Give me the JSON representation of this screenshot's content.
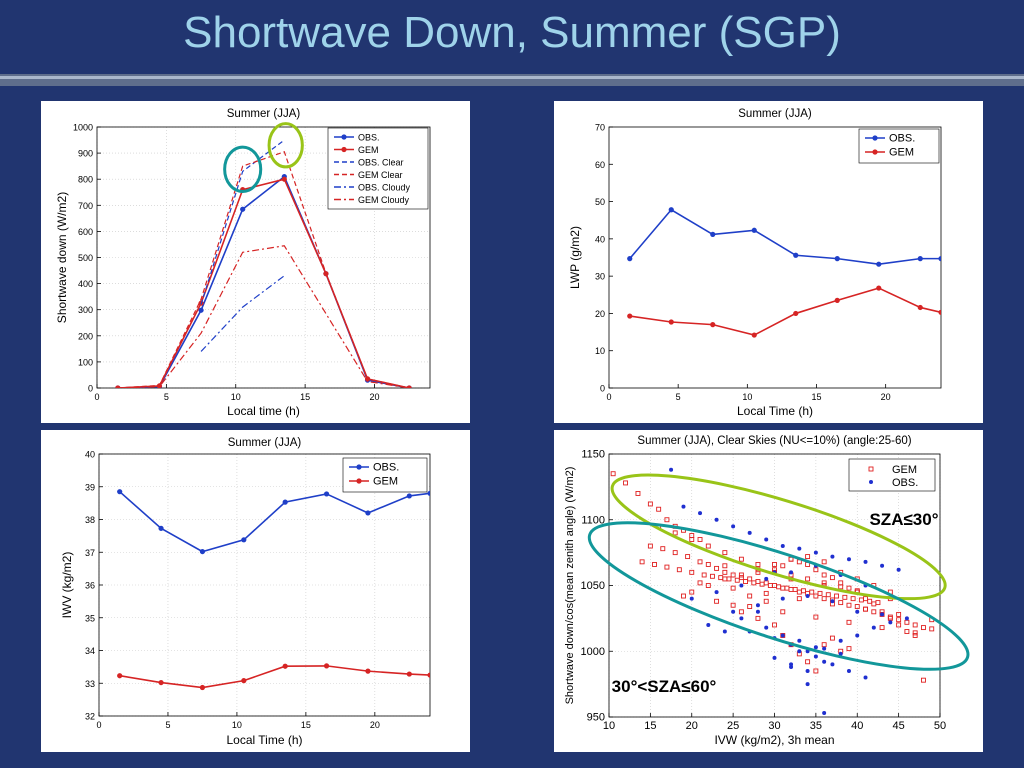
{
  "slide": {
    "title": "Shortwave Down, Summer (SGP)"
  },
  "chart_data": [
    {
      "type": "line",
      "title": "Summer (JJA)",
      "xlabel": "Local time (h)",
      "ylabel": "Shortwave down (W/m2)",
      "xlim": [
        0,
        24
      ],
      "ylim": [
        0,
        1000
      ],
      "xticks": [
        0,
        5,
        10,
        15,
        20
      ],
      "yticks": [
        0,
        100,
        200,
        300,
        400,
        500,
        600,
        700,
        800,
        900,
        1000
      ],
      "grid": true,
      "legend": "top-right",
      "series": [
        {
          "name": "OBS.",
          "color": "#1f3fc8",
          "dash": "solid",
          "markers": true,
          "x": [
            1.5,
            4.5,
            7.5,
            10.5,
            13.5,
            16.5,
            19.5,
            22.5
          ],
          "y": [
            0,
            5,
            298,
            685,
            810,
            438,
            30,
            0
          ]
        },
        {
          "name": "GEM",
          "color": "#d62424",
          "dash": "solid",
          "markers": true,
          "x": [
            1.5,
            4.5,
            7.5,
            10.5,
            13.5,
            16.5,
            19.5,
            22.5
          ],
          "y": [
            0,
            8,
            325,
            760,
            800,
            438,
            35,
            0
          ]
        },
        {
          "name": "OBS. Clear",
          "color": "#1f3fc8",
          "dash": "dash",
          "markers": false,
          "x": [
            7.5,
            10.5,
            13.5
          ],
          "y": [
            320,
            830,
            950
          ]
        },
        {
          "name": "GEM Clear",
          "color": "#d62424",
          "dash": "dash",
          "markers": false,
          "x": [
            1.5,
            4.5,
            7.5,
            10.5,
            13.5,
            16.5,
            19.5,
            22.5
          ],
          "y": [
            0,
            10,
            340,
            850,
            905,
            440,
            35,
            0
          ]
        },
        {
          "name": "OBS. Cloudy",
          "color": "#1f3fc8",
          "dash": "dashdot",
          "markers": false,
          "x": [
            7.5,
            10.5,
            13.5
          ],
          "y": [
            140,
            310,
            430
          ]
        },
        {
          "name": "GEM Cloudy",
          "color": "#d62424",
          "dash": "dashdot",
          "markers": false,
          "x": [
            1.5,
            4.5,
            7.5,
            10.5,
            13.5,
            16.5,
            19.5,
            22.5
          ],
          "y": [
            0,
            5,
            210,
            520,
            545,
            285,
            25,
            0
          ]
        }
      ],
      "highlights": [
        {
          "type": "ellipse",
          "color": "#12979a",
          "cx": 10.5,
          "cy": 838,
          "rx": 1.3,
          "ry": 85
        },
        {
          "type": "ellipse",
          "color": "#99c418",
          "cx": 13.6,
          "cy": 930,
          "rx": 1.2,
          "ry": 83
        }
      ]
    },
    {
      "type": "line",
      "title": "Summer (JJA)",
      "xlabel": "Local Time (h)",
      "ylabel": "LWP (g/m2)",
      "xlim": [
        0,
        24
      ],
      "ylim": [
        0,
        70
      ],
      "xticks": [
        0,
        5,
        10,
        15,
        20
      ],
      "yticks": [
        0,
        10,
        20,
        30,
        40,
        50,
        60,
        70
      ],
      "grid": false,
      "legend": "top-right",
      "series": [
        {
          "name": "OBS.",
          "color": "#1f3fc8",
          "dash": "solid",
          "markers": true,
          "x": [
            1.5,
            4.5,
            7.5,
            10.5,
            13.5,
            16.5,
            19.5,
            22.5,
            24
          ],
          "y": [
            34.7,
            47.8,
            41.2,
            42.3,
            35.6,
            34.7,
            33.2,
            34.7,
            34.7
          ]
        },
        {
          "name": "GEM",
          "color": "#d62424",
          "dash": "solid",
          "markers": true,
          "x": [
            1.5,
            4.5,
            7.5,
            10.5,
            13.5,
            16.5,
            19.5,
            22.5,
            24
          ],
          "y": [
            19.3,
            17.7,
            17.0,
            14.2,
            20.0,
            23.5,
            26.8,
            21.6,
            20.3
          ]
        }
      ]
    },
    {
      "type": "line",
      "title": "Summer (JJA)",
      "xlabel": "Local Time (h)",
      "ylabel": "IWV (kg/m2)",
      "xlim": [
        0,
        24
      ],
      "ylim": [
        32,
        40
      ],
      "xticks": [
        0,
        5,
        10,
        15,
        20
      ],
      "yticks": [
        32,
        33,
        34,
        35,
        36,
        37,
        38,
        39,
        40
      ],
      "grid": true,
      "legend": "top-right",
      "series": [
        {
          "name": "OBS.",
          "color": "#1f3fc8",
          "dash": "solid",
          "markers": true,
          "x": [
            1.5,
            4.5,
            7.5,
            10.5,
            13.5,
            16.5,
            19.5,
            22.5,
            24
          ],
          "y": [
            38.85,
            37.73,
            37.02,
            37.38,
            38.53,
            38.78,
            38.2,
            38.72,
            38.8
          ]
        },
        {
          "name": "GEM",
          "color": "#d62424",
          "dash": "solid",
          "markers": true,
          "x": [
            1.5,
            4.5,
            7.5,
            10.5,
            13.5,
            16.5,
            19.5,
            22.5,
            24
          ],
          "y": [
            33.23,
            33.02,
            32.87,
            33.08,
            33.52,
            33.53,
            33.37,
            33.28,
            33.25
          ]
        }
      ]
    },
    {
      "type": "scatter",
      "title": "Summer (JJA), Clear Skies (NU<=10%) (angle:25-60)",
      "xlabel": "IVW (kg/m2), 3h mean",
      "ylabel": "Shortwave down/cos(mean zenith angle) (W/m2)",
      "xlim": [
        10,
        50
      ],
      "ylim": [
        950,
        1150
      ],
      "xticks": [
        10,
        15,
        20,
        25,
        30,
        35,
        40,
        45,
        50
      ],
      "yticks": [
        950,
        1000,
        1050,
        1100,
        1150
      ],
      "grid": true,
      "legend": "top-right",
      "series": [
        {
          "name": "GEM",
          "color": "#e02020",
          "marker": "open-square",
          "x": [
            10.5,
            12,
            13.5,
            15,
            16,
            17,
            18,
            19,
            20,
            21,
            15,
            16.5,
            18,
            19.5,
            21,
            22,
            23,
            24,
            25,
            26,
            27,
            28,
            29,
            30,
            31,
            32,
            33,
            34,
            35,
            36,
            37,
            38,
            39,
            40,
            41,
            42,
            43,
            44,
            45,
            46,
            47,
            14,
            15.5,
            17,
            18.5,
            20,
            21.5,
            22.5,
            23.5,
            24.5,
            25.5,
            26.5,
            27.5,
            28.5,
            29.5,
            30.5,
            31.5,
            32.5,
            33.5,
            34.5,
            35.5,
            36.5,
            37.5,
            38.5,
            39.5,
            40.5,
            41.5,
            42.5,
            16,
            18,
            20,
            22,
            24,
            26,
            28,
            30,
            32,
            34,
            36,
            38,
            40,
            25,
            26,
            27,
            28,
            29,
            30,
            31,
            32,
            33,
            34,
            35,
            36,
            37,
            38,
            39,
            30,
            31,
            32,
            33,
            34,
            35,
            36,
            37,
            38,
            39,
            40,
            41,
            42,
            43,
            44,
            45,
            46,
            47,
            48,
            49,
            20,
            22,
            24,
            26,
            28,
            30,
            32,
            34,
            36,
            38,
            40,
            42,
            44,
            19,
            23,
            27,
            31,
            35,
            39,
            43,
            47,
            21,
            25,
            29,
            33,
            37,
            41,
            45,
            49,
            24,
            28,
            32,
            36,
            40,
            44,
            48
          ],
          "y": [
            1135,
            1128,
            1120,
            1112,
            1108,
            1100,
            1095,
            1092,
            1088,
            1085,
            1080,
            1078,
            1075,
            1072,
            1068,
            1066,
            1063,
            1060,
            1058,
            1056,
            1055,
            1053,
            1052,
            1050,
            1048,
            1047,
            1045,
            1044,
            1042,
            1040,
            1039,
            1037,
            1035,
            1034,
            1032,
            1030,
            1028,
            1026,
            1024,
            1022,
            1020,
            1068,
            1066,
            1064,
            1062,
            1060,
            1058,
            1057,
            1056,
            1055,
            1054,
            1053,
            1052,
            1051,
            1050,
            1049,
            1048,
            1047,
            1046,
            1045,
            1044,
            1043,
            1042,
            1041,
            1040,
            1039,
            1038,
            1037,
            1095,
            1090,
            1085,
            1080,
            1075,
            1070,
            1066,
            1062,
            1058,
            1055,
            1052,
            1049,
            1046,
            1035,
            1030,
            1042,
            1025,
            1038,
            1020,
            1012,
            1005,
            998,
            992,
            985,
            1005,
            1010,
            1000,
            1002,
            1060,
            1065,
            1070,
            1068,
            1066,
            1062,
            1058,
            1056,
            1052,
            1048,
            1045,
            1040,
            1036,
            1030,
            1025,
            1020,
            1015,
            1012,
            1018,
            1017,
            1045,
            1050,
            1055,
            1058,
            1062,
            1066,
            1070,
            1072,
            1068,
            1060,
            1055,
            1050,
            1045,
            1042,
            1038,
            1034,
            1030,
            1026,
            1022,
            1018,
            1014,
            1052,
            1048,
            1044,
            1040,
            1036,
            1032,
            1028,
            1024,
            1065,
            1060,
            1055,
            1050,
            1045,
            1040,
            978
          ]
        },
        {
          "name": "OBS.",
          "color": "#1f2fd0",
          "marker": "dot",
          "x": [
            17.5,
            19,
            21,
            23,
            25,
            27,
            29,
            31,
            33,
            35,
            37,
            39,
            41,
            43,
            45,
            22,
            24,
            26,
            28,
            30,
            32,
            34,
            36,
            38,
            40,
            42,
            44,
            46,
            20,
            23,
            26,
            29,
            32,
            35,
            38,
            41,
            25,
            28,
            31,
            34,
            37,
            40,
            43,
            30,
            32,
            34,
            36,
            38,
            33,
            35,
            37,
            39,
            41,
            27,
            29,
            31,
            33,
            35,
            36,
            34,
            32,
            30
          ],
          "y": [
            1138,
            1110,
            1105,
            1100,
            1095,
            1090,
            1085,
            1080,
            1078,
            1075,
            1072,
            1070,
            1068,
            1065,
            1062,
            1020,
            1015,
            1025,
            1030,
            1010,
            1005,
            1000,
            1002,
            1008,
            1012,
            1018,
            1022,
            1025,
            1040,
            1045,
            1050,
            1055,
            1060,
            1065,
            1058,
            1050,
            1030,
            1035,
            1040,
            1042,
            1038,
            1030,
            1028,
            995,
            990,
            985,
            992,
            998,
            1000,
            996,
            990,
            985,
            980,
            1015,
            1018,
            1012,
            1008,
            1003,
            953,
            975,
            988,
            1060
          ]
        }
      ],
      "highlights": [
        {
          "type": "ellipse",
          "color": "#99c418",
          "label": "SZA≤30°",
          "cx": 30.5,
          "cy": 1087,
          "rx": 21,
          "ry": 28,
          "angle": 17
        },
        {
          "type": "ellipse",
          "color": "#12979a",
          "label": "30°<SZA≤60°",
          "cx": 30.5,
          "cy": 1042,
          "rx": 24,
          "ry": 32,
          "angle": 18
        }
      ]
    }
  ]
}
